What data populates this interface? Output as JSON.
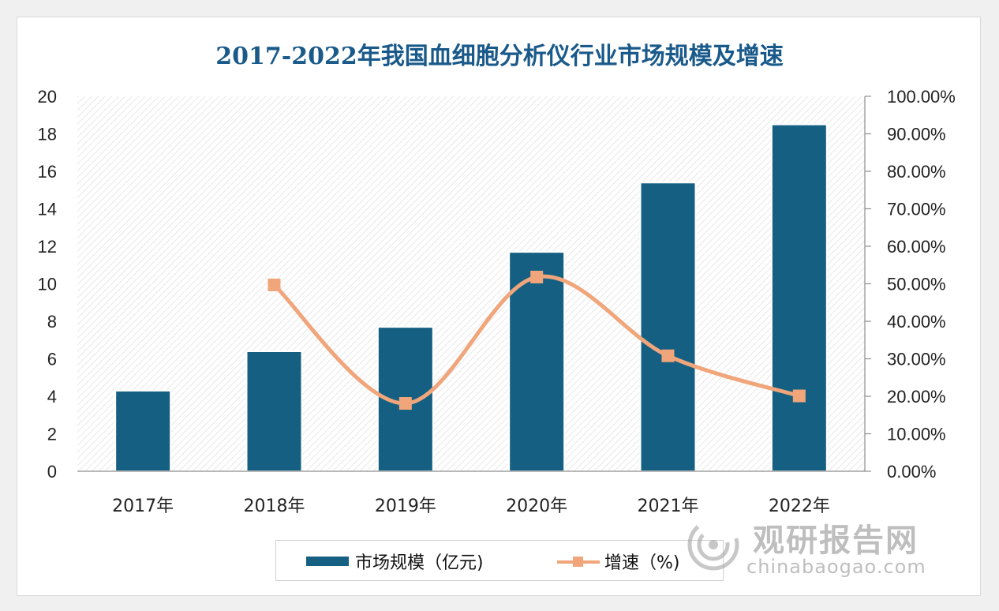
{
  "colors": {
    "bar": "#156082",
    "line": "#f0a57a",
    "title": "#1a5a8a",
    "axis": "#8e8e8e"
  },
  "chart_data": {
    "type": "bar",
    "title": "2017-2022年我国血细胞分析仪行业市场规模及增速",
    "categories": [
      "2017年",
      "2018年",
      "2019年",
      "2020年",
      "2021年",
      "2022年"
    ],
    "series": [
      {
        "name": "市场规模（亿元)",
        "type": "bar",
        "axis": "left",
        "values": [
          4.3,
          6.4,
          7.7,
          11.7,
          15.4,
          18.5
        ]
      },
      {
        "name": "增速（%)",
        "type": "line",
        "axis": "right",
        "smooth": true,
        "values": [
          null,
          49.7,
          18.1,
          51.8,
          30.8,
          20.1
        ]
      }
    ],
    "ylim": [
      0,
      20
    ],
    "yticks": [
      "0",
      "2",
      "4",
      "6",
      "8",
      "10",
      "12",
      "14",
      "16",
      "18",
      "20"
    ],
    "y2lim": [
      0,
      100
    ],
    "y2ticks": [
      "0.00%",
      "10.00%",
      "20.00%",
      "30.00%",
      "40.00%",
      "50.00%",
      "60.00%",
      "70.00%",
      "80.00%",
      "90.00%",
      "100.00%"
    ],
    "legend_position": "bottom",
    "plot_background": "hatched"
  },
  "legend": {
    "bar_label": "市场规模（亿元)",
    "line_label": "增速（%)"
  },
  "watermark": {
    "brand": "观研报告网",
    "url": "chinabaogao.com"
  }
}
